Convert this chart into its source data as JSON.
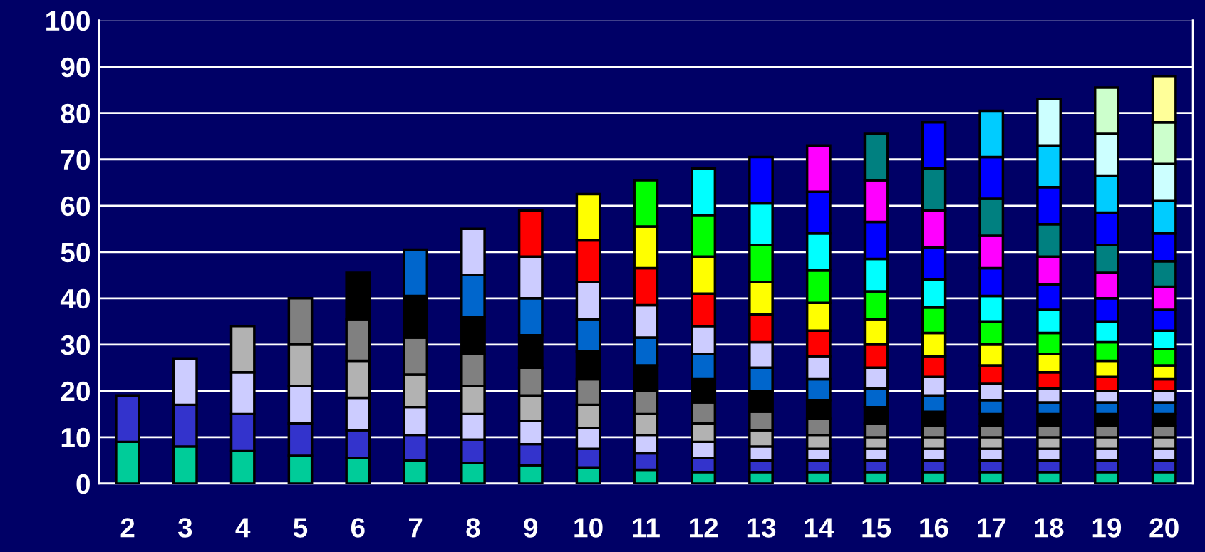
{
  "chart_data": {
    "type": "bar",
    "stacked": true,
    "categories": [
      "2",
      "3",
      "4",
      "5",
      "6",
      "7",
      "8",
      "9",
      "10",
      "11",
      "12",
      "13",
      "14",
      "15",
      "16",
      "17",
      "18",
      "19",
      "20"
    ],
    "series": [
      {
        "color": "#00cc99",
        "values": [
          9,
          8,
          7,
          6,
          5.5,
          5,
          4.5,
          4,
          3.5,
          3,
          2.5,
          2.5,
          2.5,
          2.5,
          2.5,
          2.5,
          2.5,
          2.5,
          2.5
        ]
      },
      {
        "color": "#3333cc",
        "values": [
          10,
          9,
          8,
          7,
          6,
          5.5,
          5,
          4.5,
          4,
          3.5,
          3,
          2.5,
          2.5,
          2.5,
          2.5,
          2.5,
          2.5,
          2.5,
          2.5
        ]
      },
      {
        "color": "#ccccff",
        "values": [
          null,
          10,
          9,
          8,
          7,
          6,
          5.5,
          5,
          4.5,
          4,
          3.5,
          3,
          2.5,
          2.5,
          2.5,
          2.5,
          2.5,
          2.5,
          2.5
        ]
      },
      {
        "color": "#b2b2b2",
        "values": [
          null,
          null,
          10,
          9,
          8,
          7,
          6,
          5.5,
          5,
          4.5,
          4,
          3.5,
          3,
          2.5,
          2.5,
          2.5,
          2.5,
          2.5,
          2.5
        ]
      },
      {
        "color": "#808080",
        "values": [
          null,
          null,
          null,
          10,
          9,
          8,
          7,
          6,
          5.5,
          5,
          4.5,
          4,
          3.5,
          3,
          2.5,
          2.5,
          2.5,
          2.5,
          2.5
        ]
      },
      {
        "color": "#000000",
        "values": [
          null,
          null,
          null,
          null,
          10,
          9,
          8,
          7,
          6,
          5.5,
          5,
          4.5,
          4,
          3.5,
          3,
          2.5,
          2.5,
          2.5,
          2.5
        ]
      },
      {
        "color": "#0066cc",
        "values": [
          null,
          null,
          null,
          null,
          null,
          10,
          9,
          8,
          7,
          6,
          5.5,
          5,
          4.5,
          4,
          3.5,
          3,
          2.5,
          2.5,
          2.5
        ]
      },
      {
        "color": "#ccccff",
        "values": [
          null,
          null,
          null,
          null,
          null,
          null,
          10,
          9,
          8,
          7,
          6,
          5.5,
          5,
          4.5,
          4,
          3.5,
          3,
          2.5,
          2.5
        ]
      },
      {
        "color": "#ff0000",
        "values": [
          null,
          null,
          null,
          null,
          null,
          null,
          null,
          10,
          9,
          8,
          7,
          6,
          5.5,
          5,
          4.5,
          4,
          3.5,
          3,
          2.5
        ]
      },
      {
        "color": "#ffff00",
        "values": [
          null,
          null,
          null,
          null,
          null,
          null,
          null,
          null,
          10,
          9,
          8,
          7,
          6,
          5.5,
          5,
          4.5,
          4,
          3.5,
          3
        ]
      },
      {
        "color": "#00ff00",
        "values": [
          null,
          null,
          null,
          null,
          null,
          null,
          null,
          null,
          null,
          10,
          9,
          8,
          7,
          6,
          5.5,
          5,
          4.5,
          4,
          3.5
        ]
      },
      {
        "color": "#00ffff",
        "values": [
          null,
          null,
          null,
          null,
          null,
          null,
          null,
          null,
          null,
          null,
          10,
          9,
          8,
          7,
          6,
          5.5,
          5,
          4.5,
          4
        ]
      },
      {
        "color": "#0000ff",
        "values": [
          null,
          null,
          null,
          null,
          null,
          null,
          null,
          null,
          null,
          null,
          null,
          10,
          9,
          8,
          7,
          6,
          5.5,
          5,
          4.5
        ]
      },
      {
        "color": "#ff00ff",
        "values": [
          null,
          null,
          null,
          null,
          null,
          null,
          null,
          null,
          null,
          null,
          null,
          null,
          10,
          9,
          8,
          7,
          6,
          5.5,
          5
        ]
      },
      {
        "color": "#008080",
        "values": [
          null,
          null,
          null,
          null,
          null,
          null,
          null,
          null,
          null,
          null,
          null,
          null,
          null,
          10,
          9,
          8,
          7,
          6,
          5.5
        ]
      },
      {
        "color": "#0000ff",
        "values": [
          null,
          null,
          null,
          null,
          null,
          null,
          null,
          null,
          null,
          null,
          null,
          null,
          null,
          null,
          10,
          9,
          8,
          7,
          6
        ]
      },
      {
        "color": "#00ccff",
        "values": [
          null,
          null,
          null,
          null,
          null,
          null,
          null,
          null,
          null,
          null,
          null,
          null,
          null,
          null,
          null,
          10,
          9,
          8,
          7
        ]
      },
      {
        "color": "#ccffff",
        "values": [
          null,
          null,
          null,
          null,
          null,
          null,
          null,
          null,
          null,
          null,
          null,
          null,
          null,
          null,
          null,
          null,
          10,
          9,
          8
        ]
      },
      {
        "color": "#ccffcc",
        "values": [
          null,
          null,
          null,
          null,
          null,
          null,
          null,
          null,
          null,
          null,
          null,
          null,
          null,
          null,
          null,
          null,
          null,
          10,
          9
        ]
      },
      {
        "color": "#ffff99",
        "values": [
          null,
          null,
          null,
          null,
          null,
          null,
          null,
          null,
          null,
          null,
          null,
          null,
          null,
          null,
          null,
          null,
          null,
          null,
          10
        ]
      }
    ],
    "ylim": [
      0,
      100
    ],
    "yticks": [
      0,
      10,
      20,
      30,
      40,
      50,
      60,
      70,
      80,
      90,
      100
    ],
    "grid": "y",
    "legend": false
  }
}
